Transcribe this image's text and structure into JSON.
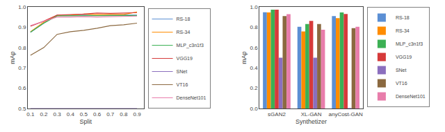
{
  "chart_data": [
    {
      "type": "line",
      "x": [
        0.1,
        0.2,
        0.3,
        0.4,
        0.5,
        0.6,
        0.7,
        0.8,
        0.9
      ],
      "series": [
        {
          "name": "RS-18",
          "color": "#5b8fd4",
          "values": [
            0.875,
            0.92,
            0.96,
            0.958,
            0.96,
            0.958,
            0.96,
            0.96,
            0.96
          ]
        },
        {
          "name": "RS-34",
          "color": "#ff8c00",
          "values": [
            0.878,
            0.925,
            0.958,
            0.96,
            0.965,
            0.962,
            0.963,
            0.963,
            0.975
          ]
        },
        {
          "name": "MLP_c3n1f3",
          "color": "#3cb054",
          "values": [
            0.876,
            0.92,
            0.956,
            0.956,
            0.958,
            0.956,
            0.956,
            0.958,
            0.958
          ]
        },
        {
          "name": "VGG19",
          "color": "#d63a3a",
          "values": [
            0.905,
            0.93,
            0.96,
            0.962,
            0.965,
            0.97,
            0.968,
            0.97,
            0.972
          ]
        },
        {
          "name": "SNet",
          "color": "#8b6fbe",
          "values": [
            0.5,
            0.5,
            0.5,
            0.5,
            0.5,
            0.5,
            0.5,
            0.5,
            0.5
          ]
        },
        {
          "name": "VT16",
          "color": "#8b6940",
          "values": [
            0.762,
            0.8,
            0.865,
            0.878,
            0.885,
            0.895,
            0.908,
            0.912,
            0.92
          ]
        },
        {
          "name": "DenseNet101",
          "color": "#e87dab",
          "values": [
            0.908,
            0.928,
            0.95,
            0.95,
            0.952,
            0.95,
            0.952,
            0.952,
            0.955
          ]
        }
      ],
      "xlabel": "Split",
      "ylabel": "mAp",
      "xlim": [
        0.08,
        0.95
      ],
      "ylim": [
        0.5,
        1.0
      ],
      "xticks": [
        0.1,
        0.2,
        0.3,
        0.4,
        0.5,
        0.6,
        0.7,
        0.8,
        0.9
      ],
      "yticks": [
        0.5,
        0.6,
        0.7,
        0.8,
        0.9,
        {
          "value": 1.0,
          "label": "1.0"
        }
      ],
      "legend": "lower right",
      "grid": false
    },
    {
      "type": "bar",
      "categories": [
        "sGAN2",
        "XL-GAN",
        "anyCost-GAN"
      ],
      "series": [
        {
          "name": "RS-18",
          "color": "#5b8fd4",
          "values": [
            0.948,
            0.805,
            0.91
          ]
        },
        {
          "name": "RS-34",
          "color": "#ff8c00",
          "values": [
            0.945,
            0.758,
            0.89
          ]
        },
        {
          "name": "MLP_c3n1f3",
          "color": "#3cb054",
          "values": [
            0.972,
            0.832,
            0.945
          ]
        },
        {
          "name": "VGG19",
          "color": "#d63a3a",
          "values": [
            0.972,
            0.862,
            0.93
          ]
        },
        {
          "name": "SNet",
          "color": "#8b6fbe",
          "values": [
            0.5,
            0.5,
            0.005
          ]
        },
        {
          "name": "VT16",
          "color": "#8b6940",
          "values": [
            0.91,
            0.832,
            0.79
          ]
        },
        {
          "name": "DenseNet101",
          "color": "#e87dab",
          "values": [
            0.928,
            0.775,
            0.805
          ]
        }
      ],
      "xlabel": "Synthetizer",
      "ylabel": "mAp",
      "ylim": [
        0.0,
        1.0
      ],
      "yticks": [
        {
          "value": 0.0,
          "label": "0.0"
        },
        0.2,
        0.4,
        0.6,
        0.8,
        {
          "value": 1.0,
          "label": "1.0"
        }
      ],
      "legend": "upper right",
      "grid": false
    }
  ]
}
